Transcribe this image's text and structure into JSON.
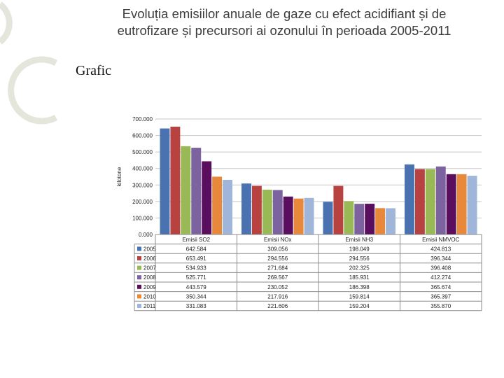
{
  "slide": {
    "title_line1": "Evoluția emisiilor anuale de gaze cu efect acidifiant și de",
    "title_line2": "eutrofizare și precursori ai ozonului în perioada 2005-2011",
    "bullet": "Grafic"
  },
  "colors": {
    "series": [
      "#4a72b0",
      "#b7423f",
      "#98b955",
      "#7d62a0",
      "#5a0f5e",
      "#e8883a",
      "#9fb5d9"
    ],
    "grid": "#c8c8c8",
    "decor": "#e4e6dc"
  },
  "chart_data": {
    "type": "bar",
    "title": "",
    "xlabel": "",
    "ylabel": "kilotone",
    "ylim": [
      0,
      700
    ],
    "yticks": [
      "0.000",
      "100.000",
      "200.000",
      "300.000",
      "400.000",
      "500.000",
      "600.000",
      "700.000"
    ],
    "grid": true,
    "legend": "table-below",
    "categories": [
      "Emisii SO2",
      "Emisii NOx",
      "Emisii NH3",
      "Emisii NMVOC"
    ],
    "series": [
      {
        "name": "2005",
        "values": [
          642.584,
          309.056,
          198.049,
          424.813
        ],
        "labels": [
          "642.584",
          "309.056",
          "198.049",
          "424.813"
        ]
      },
      {
        "name": "2006",
        "values": [
          653.491,
          294.556,
          294.556,
          396.344
        ],
        "labels": [
          "653.491",
          "294.556",
          "294.556",
          "396.344"
        ]
      },
      {
        "name": "2007",
        "values": [
          534.933,
          271.684,
          202.325,
          396.408
        ],
        "labels": [
          "534.933",
          "271.684",
          "202.325",
          "396.408"
        ]
      },
      {
        "name": "2008",
        "values": [
          525.771,
          269.567,
          185.931,
          412.274
        ],
        "labels": [
          "525.771",
          "269.567",
          "185.931",
          "412.274"
        ]
      },
      {
        "name": "2009",
        "values": [
          443.579,
          230.052,
          186.398,
          365.674
        ],
        "labels": [
          "443.579",
          "230.052",
          "186.398",
          "365.674"
        ]
      },
      {
        "name": "2010",
        "values": [
          350.344,
          217.916,
          159.814,
          365.397
        ],
        "labels": [
          "350.344",
          "217.916",
          "159.814",
          "365.397"
        ]
      },
      {
        "name": "2011",
        "values": [
          331.083,
          221.606,
          159.204,
          355.87
        ],
        "labels": [
          "331.083",
          "221.606",
          "159.204",
          "355.870"
        ]
      }
    ]
  }
}
